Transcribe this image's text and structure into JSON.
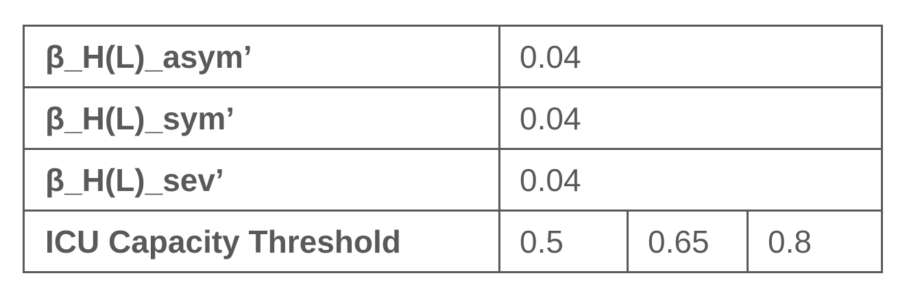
{
  "table": {
    "rows": [
      {
        "label": "β_H(L)_asym’",
        "value": "0.04"
      },
      {
        "label": "β_H(L)_sym’",
        "value": "0.04"
      },
      {
        "label": "β_H(L)_sev’",
        "value": "0.04"
      }
    ],
    "threshold_row": {
      "label": "ICU Capacity Threshold",
      "values": [
        "0.5",
        "0.65",
        "0.8"
      ]
    }
  },
  "colors": {
    "text": "#595959",
    "border": "#595959",
    "background": "#ffffff"
  }
}
